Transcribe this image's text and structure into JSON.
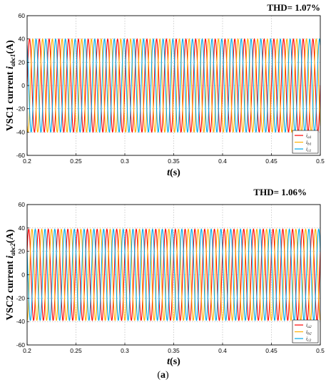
{
  "caption": {
    "open": "(",
    "letter": "a",
    "close": ")"
  },
  "chart_data": [
    {
      "type": "line",
      "thd": "THD= 1.07%",
      "ylabel_prefix": "VSC1 current ",
      "ylabel_var": "i",
      "ylabel_sub": "abc1",
      "ylabel_unit": "(A)",
      "xlabel_var": "t",
      "xlabel_unit": "(s)",
      "xlim": [
        0.2,
        0.5
      ],
      "ylim": [
        -60,
        60
      ],
      "xticks": [
        "0.2",
        "0.25",
        "0.3",
        "0.35",
        "0.4",
        "0.45",
        "0.5"
      ],
      "yticks": [
        "60",
        "40",
        "20",
        "0",
        "-20",
        "-40",
        "-60"
      ],
      "grid": true,
      "legend_position": "bottom-right",
      "amplitude": 40,
      "frequency_hz": 100,
      "series": [
        {
          "name": "i",
          "sub": "a1",
          "color": "#ff0000",
          "phase_deg": 0
        },
        {
          "name": "i",
          "sub": "b1",
          "color": "#ffb000",
          "phase_deg": -120
        },
        {
          "name": "i",
          "sub": "c1",
          "color": "#00a8e8",
          "phase_deg": 120
        }
      ]
    },
    {
      "type": "line",
      "thd": "THD= 1.06%",
      "ylabel_prefix": "VSC2 current ",
      "ylabel_var": "i",
      "ylabel_sub": "abc2",
      "ylabel_unit": "(A)",
      "xlabel_var": "t",
      "xlabel_unit": "(s)",
      "xlim": [
        0.2,
        0.5
      ],
      "ylim": [
        -60,
        60
      ],
      "xticks": [
        "0.2",
        "0.25",
        "0.3",
        "0.35",
        "0.4",
        "0.45",
        "0.5"
      ],
      "yticks": [
        "60",
        "40",
        "20",
        "0",
        "-20",
        "-40",
        "-60"
      ],
      "grid": true,
      "legend_position": "bottom-right",
      "amplitude": 39,
      "frequency_hz": 100,
      "series": [
        {
          "name": "i",
          "sub": "a2",
          "color": "#ff0000",
          "phase_deg": 30
        },
        {
          "name": "i",
          "sub": "b2",
          "color": "#ffb000",
          "phase_deg": -90
        },
        {
          "name": "i",
          "sub": "c2",
          "color": "#00a8e8",
          "phase_deg": 150
        }
      ]
    }
  ]
}
